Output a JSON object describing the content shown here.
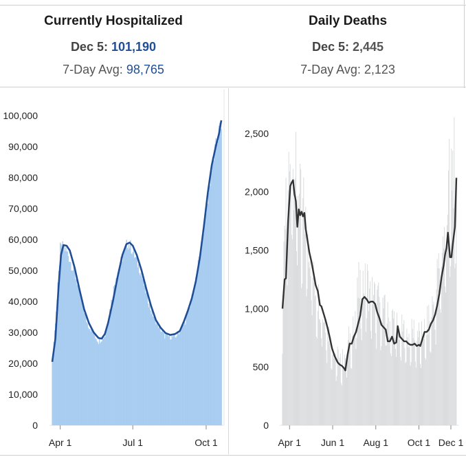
{
  "panels": {
    "hospitalized": {
      "title": "Currently Hospitalized",
      "latest_label": "Dec 5:",
      "latest_value": "101,190",
      "avg_label": "7-Day Avg:",
      "avg_value": "98,765"
    },
    "deaths": {
      "title": "Daily Deaths",
      "latest_label": "Dec 5:",
      "latest_value": "2,445",
      "avg_label": "7-Day Avg:",
      "avg_value": "2,123"
    }
  },
  "colors": {
    "hosp_bar": "#a8cdf0",
    "hosp_line": "#1f4e96",
    "death_bar": "#d6d8da",
    "death_line": "#333333"
  },
  "chart_data": [
    {
      "type": "bar",
      "name": "Currently Hospitalized",
      "x_ticks": [
        "Apr 1",
        "Jul 1",
        "Oct 1"
      ],
      "y_ticks": [
        "100,000",
        "90,000",
        "80,000",
        "70,000",
        "60,000",
        "50,000",
        "40,000",
        "30,000",
        "20,000",
        "10,000",
        "0"
      ],
      "ylim": [
        0,
        100000
      ],
      "x_start_day": 0,
      "x_tick_days": [
        10,
        101,
        193
      ],
      "avg_line": [
        [
          0,
          20500
        ],
        [
          4,
          28000
        ],
        [
          8,
          45000
        ],
        [
          11,
          55000
        ],
        [
          14,
          58200
        ],
        [
          18,
          58000
        ],
        [
          22,
          56500
        ],
        [
          28,
          51000
        ],
        [
          34,
          44000
        ],
        [
          40,
          37500
        ],
        [
          46,
          33000
        ],
        [
          52,
          30000
        ],
        [
          58,
          28200
        ],
        [
          62,
          28000
        ],
        [
          66,
          29500
        ],
        [
          70,
          33000
        ],
        [
          76,
          40000
        ],
        [
          82,
          48000
        ],
        [
          88,
          55000
        ],
        [
          93,
          58500
        ],
        [
          97,
          59000
        ],
        [
          101,
          58000
        ],
        [
          106,
          55000
        ],
        [
          112,
          50000
        ],
        [
          118,
          44000
        ],
        [
          124,
          38500
        ],
        [
          130,
          34000
        ],
        [
          136,
          31500
        ],
        [
          142,
          29800
        ],
        [
          148,
          29200
        ],
        [
          154,
          29500
        ],
        [
          160,
          30500
        ],
        [
          165,
          33500
        ],
        [
          170,
          37000
        ],
        [
          175,
          41000
        ],
        [
          180,
          46500
        ],
        [
          185,
          54000
        ],
        [
          190,
          64000
        ],
        [
          195,
          75000
        ],
        [
          200,
          84000
        ],
        [
          205,
          90000
        ],
        [
          209,
          94000
        ],
        [
          212,
          98500
        ]
      ],
      "bar_peaks": [
        [
          0,
          21000
        ],
        [
          6,
          42000
        ],
        [
          10,
          59000
        ],
        [
          14,
          60000
        ],
        [
          20,
          57000
        ],
        [
          30,
          49000
        ],
        [
          44,
          34000
        ],
        [
          58,
          28000
        ],
        [
          66,
          30000
        ],
        [
          80,
          50000
        ],
        [
          94,
          61000
        ],
        [
          98,
          60000
        ],
        [
          110,
          52000
        ],
        [
          124,
          38000
        ],
        [
          140,
          30000
        ],
        [
          154,
          29500
        ],
        [
          166,
          34000
        ],
        [
          178,
          45000
        ],
        [
          190,
          66000
        ],
        [
          200,
          86000
        ],
        [
          208,
          97000
        ],
        [
          212,
          101190
        ]
      ]
    },
    {
      "type": "bar",
      "name": "Daily Deaths",
      "x_ticks": [
        "Apr 1",
        "Jun 1",
        "Aug 1",
        "Oct 1",
        "Dec 1"
      ],
      "y_ticks": [
        "2,500",
        "2,000",
        "1,500",
        "1,000",
        "500",
        "0"
      ],
      "ylim": [
        0,
        2700
      ],
      "x_tick_days": [
        10,
        71,
        132,
        193,
        254
      ],
      "avg_line": [
        [
          0,
          1000
        ],
        [
          3,
          1250
        ],
        [
          5,
          1260
        ],
        [
          8,
          1750
        ],
        [
          11,
          2050
        ],
        [
          13,
          2080
        ],
        [
          15,
          2100
        ],
        [
          17,
          1980
        ],
        [
          19,
          1920
        ],
        [
          21,
          1700
        ],
        [
          23,
          1850
        ],
        [
          25,
          1800
        ],
        [
          27,
          1830
        ],
        [
          29,
          1790
        ],
        [
          31,
          1820
        ],
        [
          33,
          1680
        ],
        [
          35,
          1600
        ],
        [
          38,
          1480
        ],
        [
          41,
          1400
        ],
        [
          44,
          1300
        ],
        [
          47,
          1200
        ],
        [
          50,
          1150
        ],
        [
          53,
          1030
        ],
        [
          55,
          1020
        ],
        [
          58,
          960
        ],
        [
          61,
          900
        ],
        [
          64,
          830
        ],
        [
          67,
          750
        ],
        [
          70,
          660
        ],
        [
          74,
          590
        ],
        [
          78,
          540
        ],
        [
          81,
          520
        ],
        [
          84,
          510
        ],
        [
          87,
          490
        ],
        [
          89,
          470
        ],
        [
          92,
          600
        ],
        [
          95,
          700
        ],
        [
          98,
          700
        ],
        [
          101,
          760
        ],
        [
          104,
          800
        ],
        [
          107,
          870
        ],
        [
          110,
          940
        ],
        [
          113,
          1080
        ],
        [
          116,
          1100
        ],
        [
          119,
          1080
        ],
        [
          122,
          1050
        ],
        [
          125,
          1060
        ],
        [
          128,
          1060
        ],
        [
          131,
          1040
        ],
        [
          134,
          970
        ],
        [
          137,
          920
        ],
        [
          140,
          860
        ],
        [
          143,
          840
        ],
        [
          146,
          820
        ],
        [
          149,
          720
        ],
        [
          152,
          720
        ],
        [
          155,
          760
        ],
        [
          158,
          700
        ],
        [
          161,
          710
        ],
        [
          163,
          850
        ],
        [
          166,
          760
        ],
        [
          169,
          740
        ],
        [
          172,
          720
        ],
        [
          175,
          720
        ],
        [
          178,
          700
        ],
        [
          181,
          690
        ],
        [
          184,
          690
        ],
        [
          187,
          700
        ],
        [
          190,
          680
        ],
        [
          193,
          690
        ],
        [
          195,
          680
        ],
        [
          198,
          740
        ],
        [
          201,
          800
        ],
        [
          204,
          800
        ],
        [
          207,
          820
        ],
        [
          210,
          870
        ],
        [
          213,
          900
        ],
        [
          216,
          950
        ],
        [
          219,
          1030
        ],
        [
          222,
          1130
        ],
        [
          225,
          1270
        ],
        [
          228,
          1370
        ],
        [
          230,
          1460
        ],
        [
          232,
          1520
        ],
        [
          234,
          1650
        ],
        [
          237,
          1440
        ],
        [
          239,
          1440
        ],
        [
          241,
          1560
        ],
        [
          244,
          1700
        ],
        [
          246,
          2120
        ]
      ],
      "bar_envelope": [
        [
          0,
          1100
        ],
        [
          4,
          2050
        ],
        [
          8,
          2550
        ],
        [
          12,
          2450
        ],
        [
          16,
          2600
        ],
        [
          20,
          2500
        ],
        [
          24,
          2260
        ],
        [
          28,
          2230
        ],
        [
          32,
          2100
        ],
        [
          36,
          1900
        ],
        [
          40,
          1700
        ],
        [
          44,
          1450
        ],
        [
          48,
          1350
        ],
        [
          52,
          1250
        ],
        [
          56,
          1100
        ],
        [
          60,
          1050
        ],
        [
          64,
          950
        ],
        [
          68,
          900
        ],
        [
          72,
          800
        ],
        [
          76,
          700
        ],
        [
          80,
          680
        ],
        [
          84,
          650
        ],
        [
          88,
          720
        ],
        [
          92,
          850
        ],
        [
          96,
          900
        ],
        [
          100,
          1050
        ],
        [
          104,
          1200
        ],
        [
          108,
          1400
        ],
        [
          112,
          1480
        ],
        [
          116,
          1400
        ],
        [
          120,
          1460
        ],
        [
          124,
          1300
        ],
        [
          128,
          1350
        ],
        [
          132,
          1280
        ],
        [
          136,
          1250
        ],
        [
          140,
          1250
        ],
        [
          144,
          1150
        ],
        [
          148,
          1100
        ],
        [
          152,
          1050
        ],
        [
          156,
          1080
        ],
        [
          160,
          1100
        ],
        [
          164,
          950
        ],
        [
          168,
          960
        ],
        [
          172,
          950
        ],
        [
          176,
          900
        ],
        [
          180,
          880
        ],
        [
          184,
          930
        ],
        [
          188,
          1000
        ],
        [
          192,
          930
        ],
        [
          196,
          880
        ],
        [
          200,
          950
        ],
        [
          204,
          1000
        ],
        [
          208,
          1100
        ],
        [
          212,
          1200
        ],
        [
          216,
          1300
        ],
        [
          220,
          1560
        ],
        [
          224,
          1750
        ],
        [
          228,
          1850
        ],
        [
          232,
          2000
        ],
        [
          236,
          2500
        ],
        [
          240,
          2600
        ],
        [
          242,
          2720
        ],
        [
          244,
          2580
        ],
        [
          246,
          2445
        ]
      ]
    }
  ]
}
